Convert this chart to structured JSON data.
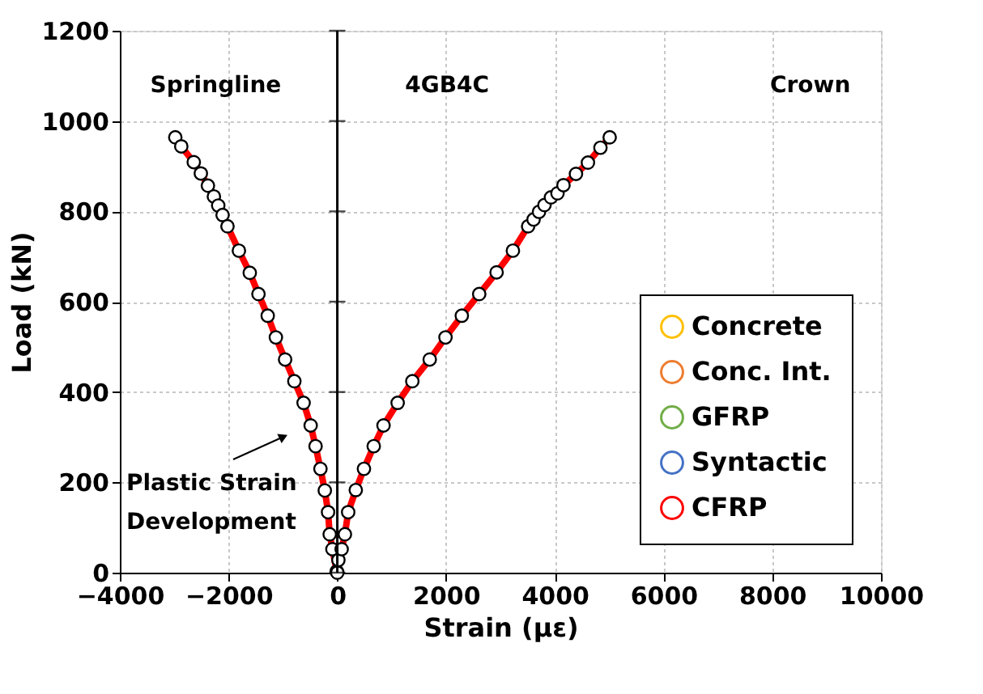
{
  "chart_data": {
    "type": "line",
    "xlabel": "Strain (με)",
    "ylabel": "Load (kN)",
    "x": [
      -2980,
      -2870,
      -2640,
      -2510,
      -2380,
      -2270,
      -2190,
      -2110,
      -2020,
      -1810,
      -1610,
      -1450,
      -1280,
      -1130,
      -960,
      -790,
      -620,
      -490,
      -400,
      -310,
      -230,
      -170,
      -140,
      -90,
      -10,
      0,
      20,
      80,
      140,
      200,
      340,
      490,
      670,
      850,
      1110,
      1380,
      1700,
      1990,
      2290,
      2610,
      2930,
      3230,
      3510,
      3610,
      3710,
      3810,
      3930,
      4050,
      4160,
      4390,
      4610,
      4840,
      5010
    ],
    "series": [
      {
        "name": "Concrete",
        "color": "#ffc000",
        "values": [
          null,
          null,
          null,
          null,
          null,
          null,
          null,
          null,
          null,
          null,
          null,
          null,
          null,
          null,
          null,
          null,
          null,
          null,
          null,
          null,
          null,
          null,
          null,
          null,
          null,
          null,
          null,
          null,
          null,
          null,
          null,
          null,
          null,
          null,
          null,
          null,
          null,
          null,
          null,
          null,
          null,
          null,
          null,
          null,
          null,
          null,
          null,
          null,
          null,
          null,
          null,
          null,
          null
        ]
      },
      {
        "name": "Conc. Int.",
        "color": "#ed7d31",
        "values": [
          null,
          null,
          null,
          null,
          null,
          null,
          null,
          null,
          null,
          null,
          null,
          null,
          null,
          null,
          null,
          null,
          null,
          null,
          null,
          null,
          null,
          null,
          null,
          null,
          null,
          null,
          null,
          null,
          null,
          null,
          null,
          null,
          null,
          null,
          null,
          null,
          null,
          null,
          null,
          null,
          null,
          null,
          null,
          null,
          null,
          null,
          null,
          null,
          null,
          null,
          null,
          null,
          null
        ]
      },
      {
        "name": "GFRP",
        "color": "#70ad47",
        "values": [
          null,
          null,
          null,
          null,
          null,
          null,
          null,
          null,
          null,
          null,
          null,
          null,
          null,
          null,
          null,
          null,
          null,
          null,
          null,
          null,
          null,
          null,
          null,
          null,
          null,
          null,
          null,
          null,
          null,
          null,
          null,
          null,
          null,
          null,
          null,
          null,
          null,
          null,
          null,
          null,
          null,
          null,
          null,
          null,
          null,
          null,
          null,
          null,
          null,
          null,
          null,
          null,
          null
        ]
      },
      {
        "name": "Syntactic",
        "color": "#4472c4",
        "values": [
          null,
          null,
          null,
          null,
          null,
          null,
          null,
          null,
          null,
          null,
          null,
          null,
          null,
          null,
          null,
          null,
          null,
          null,
          null,
          null,
          null,
          null,
          null,
          null,
          null,
          null,
          null,
          null,
          null,
          null,
          null,
          null,
          null,
          null,
          null,
          null,
          null,
          null,
          null,
          null,
          null,
          null,
          null,
          null,
          null,
          null,
          null,
          null,
          null,
          null,
          null,
          null,
          null
        ]
      },
      {
        "name": "CFRP",
        "color": "#ff0000",
        "values": [
          964,
          944,
          909,
          884,
          857,
          833,
          813,
          792,
          767,
          713,
          664,
          617,
          569,
          521,
          472,
          424,
          376,
          326,
          280,
          230,
          182,
          134,
          85,
          52,
          3,
          0,
          28,
          52,
          85,
          134,
          183,
          230,
          280,
          326,
          376,
          424,
          472,
          521,
          569,
          617,
          665,
          713,
          767,
          782,
          799,
          814,
          831,
          840,
          858,
          883,
          908,
          941,
          964
        ]
      }
    ],
    "xlim": [
      -4000,
      10000
    ],
    "xticks": [
      -4000,
      -2000,
      0,
      2000,
      4000,
      6000,
      8000,
      10000
    ],
    "ylim": [
      0,
      1200
    ],
    "yticks": [
      0,
      200,
      400,
      600,
      800,
      1000,
      1200
    ],
    "grid": true,
    "legend": "bottom right",
    "marker": "circle",
    "line_style": "solid",
    "ref_lines": [
      {
        "axis": "x",
        "value": 0,
        "color": "#000000",
        "line_style": "solid"
      }
    ],
    "annotations": [
      "Springline",
      "4GB4C",
      "Crown",
      "Plastic Strain\nDevelopment"
    ]
  }
}
